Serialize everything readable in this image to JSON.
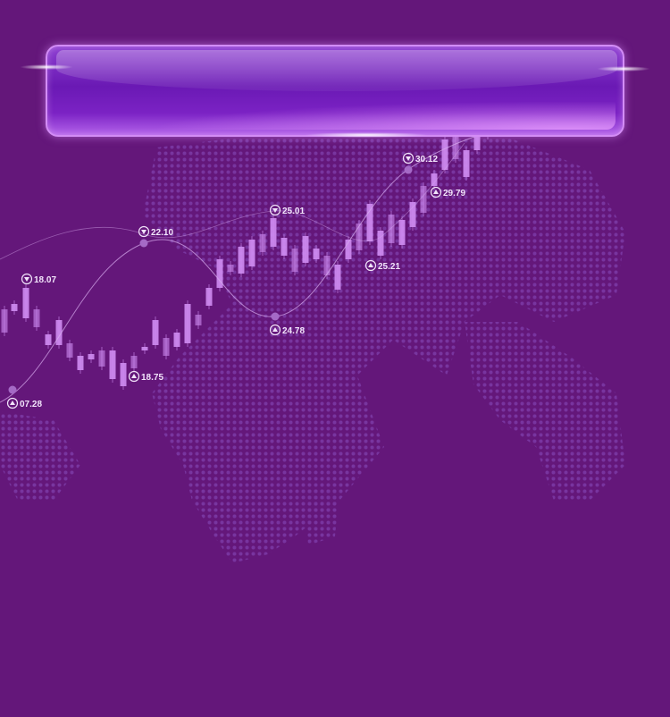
{
  "banner": {
    "title": ""
  },
  "chart_data": {
    "type": "candlestick",
    "title": "",
    "xlabel": "",
    "ylabel": "",
    "grid": false,
    "legend": "none",
    "colors": {
      "background": "#64177a",
      "candle": "#cf8cf2",
      "line": "#d9aef0",
      "label": "#f2e4fb"
    },
    "annotations": [
      {
        "label": "18.07",
        "marker": "down"
      },
      {
        "label": "07.28",
        "marker": "up"
      },
      {
        "label": "22.10",
        "marker": "down"
      },
      {
        "label": "18.75",
        "marker": "up"
      },
      {
        "label": "25.01",
        "marker": "down"
      },
      {
        "label": "24.78",
        "marker": "up"
      },
      {
        "label": "25.21",
        "marker": "up"
      },
      {
        "label": "30.12",
        "marker": "down"
      },
      {
        "label": "29.79",
        "marker": "up"
      }
    ],
    "trend_series": [
      {
        "values": [
          7.28,
          14.0,
          22.1,
          21.0,
          24.78,
          26.5,
          30.12
        ]
      },
      {
        "values": [
          18.07,
          21.5,
          22.1,
          25.01,
          25.21,
          29.79
        ]
      }
    ]
  }
}
